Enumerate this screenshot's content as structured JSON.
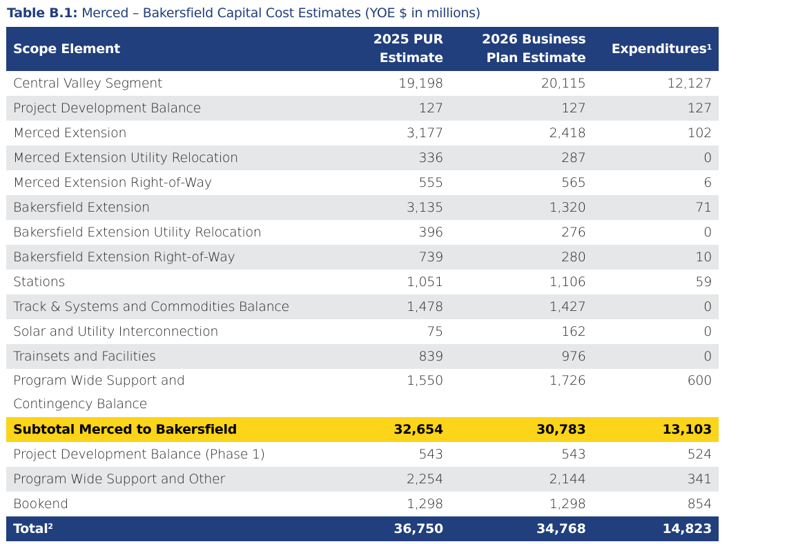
{
  "title": {
    "label": "Table B.1:",
    "text": " Merced – Bakersfield Capital Cost Estimates (YOE $ in millions)"
  },
  "colors": {
    "header": "#213f7d",
    "subtotal": "#fcd419",
    "stripe": "#e6e7e8"
  },
  "headers": {
    "scope": "Scope Element",
    "pur_1": "2025 PUR",
    "pur_2": "Estimate",
    "bp_1": "2026 Business",
    "bp_2": "Plan Estimate",
    "exp": "Expenditures",
    "exp_note": "1"
  },
  "rows": [
    {
      "label": "Central Valley Segment",
      "pur": "19,198",
      "bp": "20,115",
      "exp": "12,127"
    },
    {
      "label": "Project Development Balance",
      "pur": "127",
      "bp": "127",
      "exp": "127"
    },
    {
      "label": "Merced Extension",
      "pur": "3,177",
      "bp": "2,418",
      "exp": "102"
    },
    {
      "label": "Merced Extension Utility Relocation",
      "pur": "336",
      "bp": "287",
      "exp": "0"
    },
    {
      "label": "Merced Extension Right-of-Way",
      "pur": "555",
      "bp": "565",
      "exp": "6"
    },
    {
      "label": "Bakersfield Extension",
      "pur": "3,135",
      "bp": "1,320",
      "exp": "71"
    },
    {
      "label": "Bakersfield Extension Utility Relocation",
      "pur": "396",
      "bp": "276",
      "exp": "0"
    },
    {
      "label": "Bakersfield Extension Right-of-Way",
      "pur": "739",
      "bp": "280",
      "exp": "10"
    },
    {
      "label": "Stations",
      "pur": "1,051",
      "bp": "1,106",
      "exp": "59"
    },
    {
      "label": "Track & Systems and Commodities Balance",
      "pur": "1,478",
      "bp": "1,427",
      "exp": "0"
    },
    {
      "label": "Solar and Utility Interconnection",
      "pur": "75",
      "bp": "162",
      "exp": "0"
    },
    {
      "label": "Trainsets and Facilities",
      "pur": "839",
      "bp": "976",
      "exp": "0"
    },
    {
      "label": "Program Wide Support and",
      "label2": "Contingency Balance",
      "pur": "1,550",
      "bp": "1,726",
      "exp": "600"
    }
  ],
  "subtotal": {
    "label": "Subtotal Merced to Bakersfield",
    "pur": "32,654",
    "bp": "30,783",
    "exp": "13,103"
  },
  "rows2": [
    {
      "label": "Project Development Balance (Phase 1)",
      "pur": "543",
      "bp": "543",
      "exp": "524"
    },
    {
      "label": "Program Wide Support and Other",
      "pur": "2,254",
      "bp": "2,144",
      "exp": "341"
    },
    {
      "label": "Bookend",
      "pur": "1,298",
      "bp": "1,298",
      "exp": "854"
    }
  ],
  "total": {
    "label": "Total",
    "note": "2",
    "pur": "36,750",
    "bp": "34,768",
    "exp": "14,823"
  }
}
